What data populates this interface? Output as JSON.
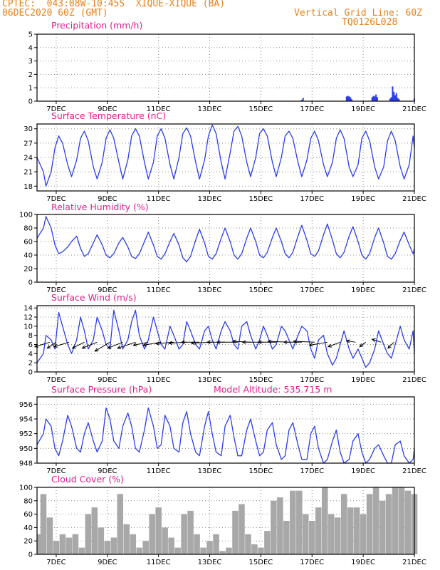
{
  "header": {
    "line1": "CPTEC:  043:08W-10:45S  XIQUE-XIQUE (BA)",
    "line2_left": "06DEC2020 60Z (GMT)",
    "line2_right": "Vertical Grid Line: 60Z",
    "line3_right": "TQ0126L028"
  },
  "colors": {
    "header": "#e8811a",
    "title": "#e0208a",
    "series": "#2a3ee8",
    "cloud": "#a8a8a8",
    "arrow": "#000000"
  },
  "x_axis": {
    "tick_labels": [
      "7DEC",
      "9DEC",
      "11DEC",
      "13DEC",
      "15DEC",
      "17DEC",
      "19DEC",
      "21DEC"
    ],
    "tick_days": [
      7,
      9,
      11,
      13,
      15,
      17,
      19,
      21
    ],
    "range_days": [
      6.25,
      21
    ]
  },
  "chart_data": [
    {
      "id": "precipitation",
      "type": "bar",
      "title": "Precipitation (mm/h)",
      "ylim": [
        0,
        5
      ],
      "yticks": [
        0,
        1,
        2,
        3,
        4,
        5
      ],
      "x": [
        16.6,
        16.65,
        18.35,
        18.4,
        18.45,
        18.5,
        18.55,
        19.35,
        19.4,
        19.45,
        19.5,
        19.55,
        20.05,
        20.1,
        20.15,
        20.2,
        20.25,
        20.3,
        20.35,
        20.4,
        21.0
      ],
      "values": [
        0.1,
        0.25,
        0.35,
        0.4,
        0.35,
        0.3,
        0.15,
        0.3,
        0.4,
        0.35,
        0.5,
        0.3,
        0.2,
        0.3,
        1.1,
        0.7,
        0.45,
        0.6,
        0.25,
        0.15,
        0.2
      ]
    },
    {
      "id": "temperature",
      "type": "line",
      "title": "Surface Temperature (nC)",
      "ylim": [
        17,
        31
      ],
      "yticks": [
        18,
        21,
        24,
        27,
        30
      ],
      "x": [
        6.25,
        6.5,
        6.6,
        6.8,
        6.95,
        7.1,
        7.25,
        7.45,
        7.6,
        7.8,
        7.95,
        8.1,
        8.25,
        8.45,
        8.6,
        8.8,
        8.95,
        9.1,
        9.25,
        9.45,
        9.6,
        9.8,
        9.95,
        10.1,
        10.25,
        10.45,
        10.6,
        10.8,
        10.95,
        11.1,
        11.25,
        11.45,
        11.6,
        11.8,
        11.95,
        12.1,
        12.25,
        12.45,
        12.6,
        12.8,
        12.95,
        13.1,
        13.25,
        13.45,
        13.6,
        13.8,
        13.95,
        14.1,
        14.25,
        14.45,
        14.6,
        14.8,
        14.95,
        15.1,
        15.25,
        15.45,
        15.6,
        15.8,
        15.95,
        16.1,
        16.25,
        16.45,
        16.6,
        16.8,
        16.95,
        17.1,
        17.25,
        17.45,
        17.6,
        17.8,
        17.95,
        18.1,
        18.25,
        18.45,
        18.6,
        18.8,
        18.95,
        19.1,
        19.25,
        19.45,
        19.6,
        19.8,
        19.95,
        20.1,
        20.25,
        20.45,
        20.6,
        20.8,
        20.95,
        21.0
      ],
      "series": [
        {
          "values": [
            24,
            21,
            18,
            21,
            26,
            28.5,
            27,
            22.5,
            20,
            23.5,
            28,
            29.5,
            27.5,
            22,
            19.5,
            23,
            28,
            29.8,
            28,
            23,
            19.5,
            23.5,
            28.5,
            30,
            28.5,
            23,
            19.5,
            23,
            28.5,
            30,
            28,
            22.5,
            19.5,
            24,
            29,
            30.2,
            28.5,
            23,
            19.5,
            23.5,
            28.5,
            30.8,
            29,
            23,
            19.5,
            25,
            29.5,
            30.5,
            28.5,
            23,
            20,
            24,
            29,
            30,
            28.5,
            23,
            20,
            24,
            28.5,
            29.5,
            28,
            23,
            20,
            23.5,
            28,
            29.5,
            27.5,
            22.5,
            20,
            23,
            28,
            29.8,
            28,
            22,
            20,
            22.5,
            28,
            29.5,
            27.5,
            22,
            19.5,
            22,
            27.5,
            29.5,
            27.5,
            22,
            19.5,
            22.5,
            28.5,
            26
          ]
        }
      ]
    },
    {
      "id": "humidity",
      "type": "line",
      "title": "Relative Humidity (%)",
      "ylim": [
        0,
        100
      ],
      "yticks": [
        0,
        20,
        40,
        60,
        80,
        100
      ],
      "x": [
        6.25,
        6.5,
        6.6,
        6.8,
        6.95,
        7.1,
        7.25,
        7.45,
        7.6,
        7.8,
        7.95,
        8.1,
        8.25,
        8.45,
        8.6,
        8.8,
        8.95,
        9.1,
        9.25,
        9.45,
        9.6,
        9.8,
        9.95,
        10.1,
        10.25,
        10.45,
        10.6,
        10.8,
        10.95,
        11.1,
        11.25,
        11.45,
        11.6,
        11.8,
        11.95,
        12.1,
        12.25,
        12.45,
        12.6,
        12.8,
        12.95,
        13.1,
        13.25,
        13.45,
        13.6,
        13.8,
        13.95,
        14.1,
        14.25,
        14.45,
        14.6,
        14.8,
        14.95,
        15.1,
        15.25,
        15.45,
        15.6,
        15.8,
        15.95,
        16.1,
        16.25,
        16.45,
        16.6,
        16.8,
        16.95,
        17.1,
        17.25,
        17.45,
        17.6,
        17.8,
        17.95,
        18.1,
        18.25,
        18.45,
        18.6,
        18.8,
        18.95,
        19.1,
        19.25,
        19.45,
        19.6,
        19.8,
        19.95,
        20.1,
        20.25,
        20.45,
        20.6,
        20.8,
        20.95,
        21.0
      ],
      "series": [
        {
          "values": [
            65,
            80,
            97,
            80,
            55,
            42,
            45,
            52,
            60,
            68,
            50,
            38,
            42,
            58,
            70,
            55,
            40,
            36,
            42,
            58,
            66,
            52,
            38,
            35,
            42,
            60,
            74,
            55,
            38,
            34,
            42,
            60,
            72,
            55,
            36,
            30,
            38,
            62,
            78,
            58,
            38,
            34,
            42,
            65,
            80,
            60,
            40,
            34,
            42,
            65,
            80,
            60,
            40,
            36,
            44,
            66,
            80,
            60,
            42,
            36,
            44,
            68,
            84,
            62,
            42,
            38,
            46,
            70,
            86,
            62,
            42,
            36,
            44,
            68,
            82,
            60,
            40,
            34,
            42,
            66,
            80,
            58,
            38,
            34,
            42,
            62,
            74,
            55,
            42,
            50
          ]
        }
      ]
    },
    {
      "id": "wind",
      "type": "line",
      "title": "Surface Wind (m/s)",
      "ylim": [
        0,
        14.5
      ],
      "yticks": [
        0,
        2,
        4,
        6,
        8,
        10,
        12,
        14
      ],
      "x": [
        6.25,
        6.5,
        6.6,
        6.8,
        6.95,
        7.1,
        7.25,
        7.45,
        7.6,
        7.8,
        7.95,
        8.1,
        8.25,
        8.45,
        8.6,
        8.8,
        8.95,
        9.1,
        9.25,
        9.45,
        9.6,
        9.8,
        9.95,
        10.1,
        10.25,
        10.45,
        10.6,
        10.8,
        10.95,
        11.1,
        11.25,
        11.45,
        11.6,
        11.8,
        11.95,
        12.1,
        12.25,
        12.45,
        12.6,
        12.8,
        12.95,
        13.1,
        13.25,
        13.45,
        13.6,
        13.8,
        13.95,
        14.1,
        14.25,
        14.45,
        14.6,
        14.8,
        14.95,
        15.1,
        15.25,
        15.45,
        15.6,
        15.8,
        15.95,
        16.1,
        16.25,
        16.45,
        16.6,
        16.8,
        16.95,
        17.1,
        17.25,
        17.45,
        17.6,
        17.8,
        17.95,
        18.1,
        18.25,
        18.45,
        18.6,
        18.8,
        18.95,
        19.1,
        19.25,
        19.45,
        19.6,
        19.8,
        19.95,
        20.1,
        20.25,
        20.45,
        20.6,
        20.8,
        20.95,
        21.0
      ],
      "series": [
        {
          "values": [
            2,
            4,
            8,
            7,
            5,
            13,
            10,
            6,
            4,
            7,
            12,
            9,
            5,
            7,
            12,
            9,
            6,
            5,
            13.5,
            9,
            5,
            7,
            11,
            13.5,
            8,
            5,
            7,
            12,
            9,
            6,
            5,
            10,
            8,
            5,
            6,
            11,
            9,
            6,
            5,
            9,
            10,
            7,
            5,
            9,
            11,
            9,
            6,
            5,
            10,
            11,
            8,
            5,
            7,
            10,
            8,
            5,
            6,
            10,
            9,
            7,
            5,
            8,
            10,
            9,
            5,
            3,
            7,
            8,
            4,
            1.5,
            3,
            6,
            9,
            5,
            3,
            5,
            3,
            1,
            2,
            5,
            9,
            6,
            4,
            3,
            6,
            10,
            7,
            5,
            9,
            4
          ]
        }
      ],
      "vectors": {
        "x": [
          6.75,
          7.0,
          7.5,
          8.1,
          8.6,
          9.1,
          9.6,
          10.1,
          10.6,
          11.1,
          11.6,
          12.1,
          12.6,
          13.1,
          13.6,
          14.1,
          14.6,
          15.1,
          15.6,
          16.1,
          16.6,
          17.1,
          17.6,
          18.1,
          18.7,
          19.1,
          19.7,
          20.2
        ],
        "u": [
          -5,
          -3,
          -5,
          -4,
          -5,
          -5,
          -5,
          -6,
          -5,
          -6,
          -6,
          -6,
          -6,
          -7,
          -6,
          -7,
          -6,
          -7,
          -6,
          -7,
          -6,
          -7,
          -6,
          -4,
          -3,
          -2,
          -3,
          -2
        ],
        "v": [
          -1.5,
          -2,
          -1.5,
          -2,
          -2,
          -3,
          -2,
          -2,
          -1,
          -1,
          -0.5,
          -0.3,
          0,
          -0.3,
          0,
          0,
          0.3,
          0,
          0,
          0.3,
          0,
          0.3,
          -1,
          -1.5,
          0.5,
          -1.5,
          1,
          -2
        ]
      }
    },
    {
      "id": "pressure",
      "type": "line",
      "title": "Surface Pressure (hPa)",
      "annotation": "Model Altitude: 535.715 m",
      "ylim": [
        948,
        957
      ],
      "yticks": [
        948,
        950,
        952,
        954,
        956
      ],
      "x": [
        6.25,
        6.5,
        6.6,
        6.8,
        6.95,
        7.1,
        7.25,
        7.45,
        7.6,
        7.8,
        7.95,
        8.1,
        8.25,
        8.45,
        8.6,
        8.8,
        8.95,
        9.1,
        9.25,
        9.45,
        9.6,
        9.8,
        9.95,
        10.1,
        10.25,
        10.45,
        10.6,
        10.8,
        10.95,
        11.1,
        11.25,
        11.45,
        11.6,
        11.8,
        11.95,
        12.1,
        12.25,
        12.45,
        12.6,
        12.8,
        12.95,
        13.1,
        13.25,
        13.45,
        13.6,
        13.8,
        13.95,
        14.1,
        14.25,
        14.45,
        14.6,
        14.8,
        14.95,
        15.1,
        15.25,
        15.45,
        15.6,
        15.8,
        15.95,
        16.1,
        16.25,
        16.45,
        16.6,
        16.8,
        16.95,
        17.1,
        17.25,
        17.45,
        17.6,
        17.8,
        17.95,
        18.1,
        18.25,
        18.45,
        18.6,
        18.8,
        18.95,
        19.1,
        19.25,
        19.45,
        19.6,
        19.8,
        19.95,
        20.1,
        20.25,
        20.45,
        20.6,
        20.8,
        20.95,
        21.0
      ],
      "series": [
        {
          "values": [
            950.5,
            952,
            954,
            953,
            950,
            949,
            951,
            954.5,
            953,
            950,
            949.5,
            952,
            953.5,
            951,
            949.5,
            951,
            955.5,
            954,
            951,
            950,
            953,
            954.8,
            953,
            950,
            949.5,
            952.5,
            955.5,
            953,
            950,
            950.5,
            954.5,
            953,
            950,
            949.5,
            953.5,
            955,
            952,
            949.5,
            949,
            953,
            955,
            952,
            949.5,
            949,
            953,
            954.5,
            951.5,
            949,
            949,
            952.5,
            954,
            951,
            949,
            949.5,
            952.5,
            953.5,
            950.5,
            948.5,
            949,
            952.5,
            953.5,
            950.5,
            948.5,
            948.5,
            952,
            953,
            950,
            948,
            948.5,
            951,
            952.5,
            949.5,
            948,
            948.5,
            951,
            952,
            949.5,
            948,
            948.5,
            950,
            950.5,
            949,
            948,
            948,
            950.5,
            951,
            949,
            948,
            948.5,
            950
          ]
        }
      ]
    },
    {
      "id": "cloud",
      "type": "bar",
      "title": "Cloud Cover (%)",
      "ylim": [
        0,
        100
      ],
      "yticks": [
        0,
        20,
        40,
        60,
        80,
        100
      ],
      "x": [
        6.25,
        6.5,
        6.75,
        7.0,
        7.25,
        7.5,
        7.75,
        8.0,
        8.25,
        8.5,
        8.75,
        9.0,
        9.25,
        9.5,
        9.75,
        10.0,
        10.25,
        10.5,
        10.75,
        11.0,
        11.25,
        11.5,
        11.75,
        12.0,
        12.25,
        12.5,
        12.75,
        13.0,
        13.25,
        13.5,
        13.75,
        14.0,
        14.25,
        14.5,
        14.75,
        15.0,
        15.25,
        15.5,
        15.75,
        16.0,
        16.25,
        16.5,
        16.75,
        17.0,
        17.25,
        17.5,
        17.75,
        18.0,
        18.25,
        18.5,
        18.75,
        19.0,
        19.25,
        19.5,
        19.75,
        20.0,
        20.25,
        20.5,
        20.75,
        21.0
      ],
      "values": [
        30,
        90,
        55,
        20,
        30,
        25,
        30,
        10,
        60,
        70,
        40,
        20,
        25,
        90,
        45,
        30,
        10,
        20,
        60,
        70,
        40,
        25,
        10,
        60,
        65,
        30,
        10,
        20,
        30,
        5,
        10,
        65,
        75,
        30,
        15,
        10,
        35,
        80,
        85,
        50,
        95,
        95,
        60,
        50,
        70,
        100,
        60,
        55,
        90,
        70,
        70,
        60,
        90,
        100,
        80,
        90,
        100,
        100,
        95,
        90
      ]
    }
  ]
}
